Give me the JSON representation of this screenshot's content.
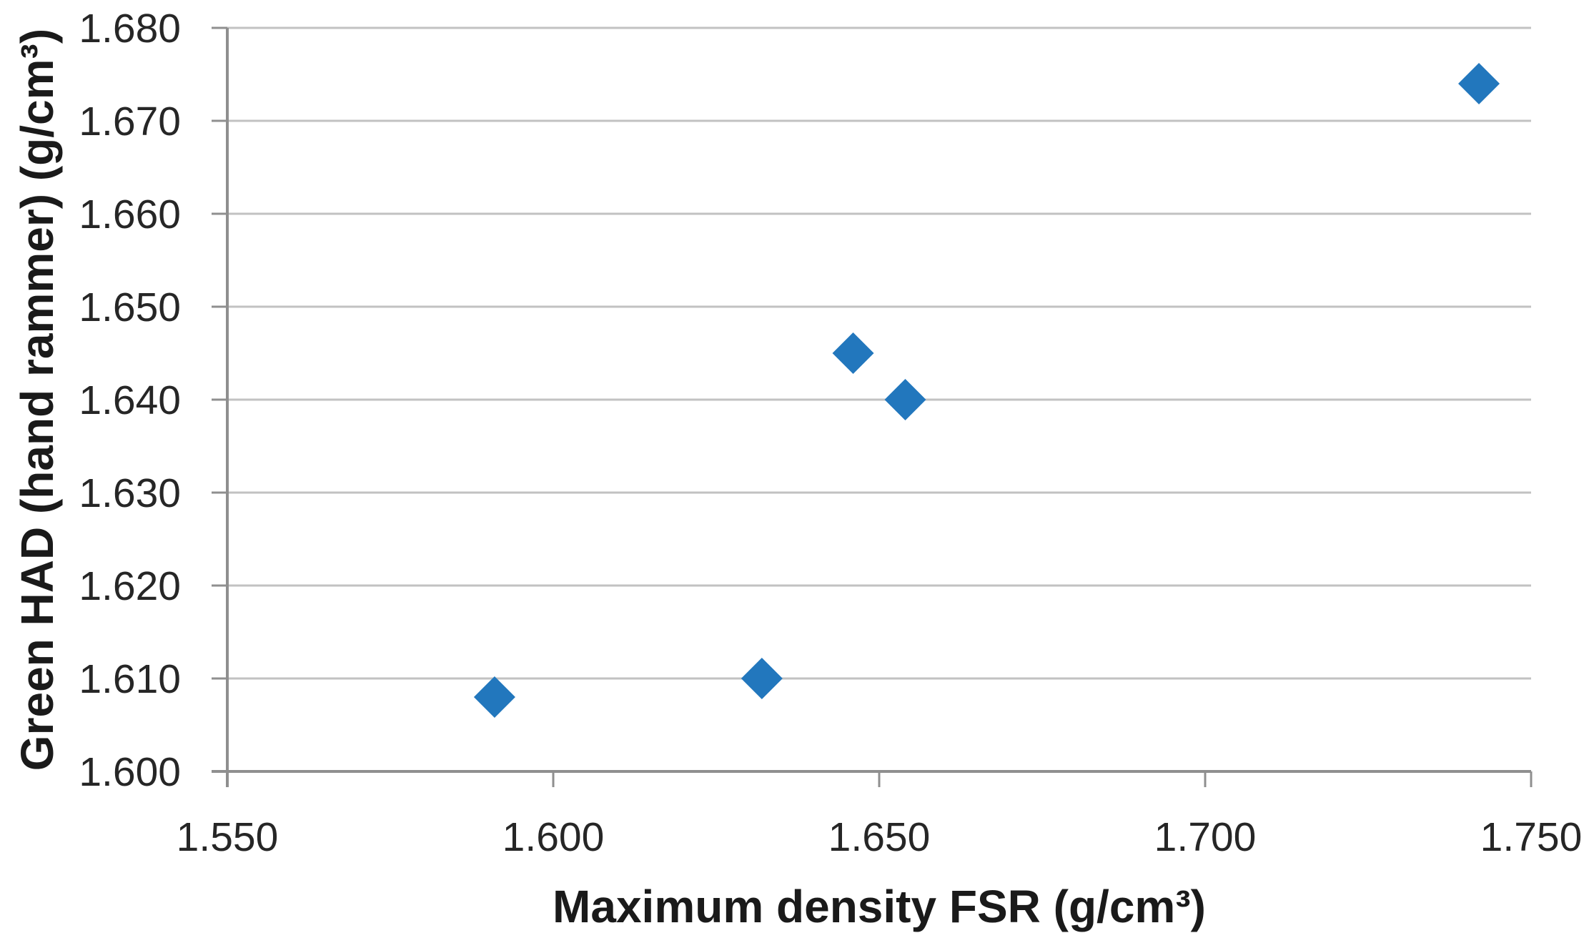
{
  "chart_data": {
    "type": "scatter",
    "title": "",
    "xlabel": "Maximum density FSR (g/cm³)",
    "ylabel": "Green HAD (hand rammer) (g/cm³)",
    "points": [
      {
        "x": 1.591,
        "y": 1.608
      },
      {
        "x": 1.632,
        "y": 1.61
      },
      {
        "x": 1.646,
        "y": 1.645
      },
      {
        "x": 1.654,
        "y": 1.64
      },
      {
        "x": 1.742,
        "y": 1.674
      }
    ],
    "xlim": [
      1.55,
      1.75
    ],
    "ylim": [
      1.6,
      1.68
    ],
    "x_tick_values": [
      1.55,
      1.6,
      1.65,
      1.7,
      1.75
    ],
    "x_tick_labels": [
      "1.550",
      "1.600",
      "1.650",
      "1.700",
      "1.750"
    ],
    "y_tick_values": [
      1.6,
      1.61,
      1.62,
      1.63,
      1.64,
      1.65,
      1.66,
      1.67,
      1.68
    ],
    "y_tick_labels": [
      "1.600",
      "1.610",
      "1.620",
      "1.630",
      "1.640",
      "1.650",
      "1.660",
      "1.670",
      "1.680"
    ],
    "grid": "horizontal-only",
    "legend": "none",
    "marker": {
      "shape": "diamond",
      "color": "#2277BD",
      "size": 58
    },
    "colors": {
      "gridline": "#C2C2C2",
      "axis": "#8F8F8F",
      "tick": "#8F8F8F",
      "text": "#262626",
      "background": "#FFFFFF"
    }
  }
}
